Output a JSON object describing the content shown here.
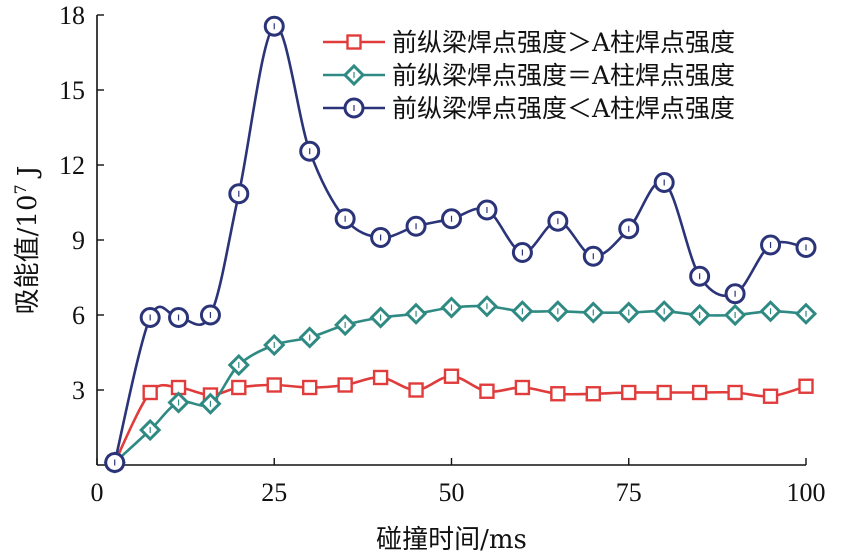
{
  "chart_data": {
    "type": "line",
    "xlabel": "碰撞时间/ms",
    "ylabel_main": "吸能值/10",
    "ylabel_exp": "7",
    "ylabel_unit": " J",
    "xlim": [
      0,
      100
    ],
    "ylim": [
      0,
      18
    ],
    "xticks": [
      0,
      25,
      50,
      75,
      100
    ],
    "xtick_labels": [
      "0",
      "25",
      "50",
      "75",
      "100"
    ],
    "yticks": [
      3,
      6,
      9,
      12,
      15,
      18
    ],
    "ytick_labels": [
      "3",
      "6",
      "9",
      "12",
      "15",
      "18"
    ],
    "grid": false,
    "legend_position": "top-right",
    "series": [
      {
        "name": "前纵梁焊点强度＞A柱焊点强度",
        "color": "#e03c3c",
        "marker": "square",
        "x": [
          2.5,
          7.5,
          11.5,
          16,
          20,
          25,
          30,
          35,
          40,
          45,
          50,
          55,
          60,
          65,
          70,
          75,
          80,
          85,
          90,
          95,
          100
        ],
        "y": [
          0.1,
          2.9,
          3.1,
          2.8,
          3.1,
          3.2,
          3.1,
          3.2,
          3.5,
          3.0,
          3.55,
          2.95,
          3.1,
          2.85,
          2.85,
          2.9,
          2.9,
          2.9,
          2.9,
          2.75,
          3.15
        ]
      },
      {
        "name": "前纵梁焊点强度＝A柱焊点强度",
        "color": "#2e8a82",
        "marker": "diamond",
        "x": [
          2.5,
          7.5,
          11.5,
          16,
          20,
          25,
          30,
          35,
          40,
          45,
          50,
          55,
          60,
          65,
          70,
          75,
          80,
          85,
          90,
          95,
          100
        ],
        "y": [
          0.1,
          1.4,
          2.5,
          2.45,
          4.0,
          4.8,
          5.1,
          5.6,
          5.9,
          6.05,
          6.3,
          6.35,
          6.15,
          6.15,
          6.1,
          6.1,
          6.15,
          6.0,
          6.0,
          6.15,
          6.05
        ]
      },
      {
        "name": "前纵梁焊点强度＜A柱焊点强度",
        "color": "#2b3478",
        "marker": "circle",
        "x": [
          2.5,
          7.5,
          11.5,
          16,
          20,
          25,
          30,
          35,
          40,
          45,
          50,
          55,
          60,
          65,
          70,
          75,
          80,
          85,
          90,
          95,
          100
        ],
        "y": [
          0.1,
          5.9,
          5.9,
          6.0,
          10.85,
          17.55,
          12.55,
          9.85,
          9.1,
          9.55,
          9.85,
          10.2,
          8.5,
          9.75,
          8.35,
          9.45,
          11.3,
          7.55,
          6.85,
          8.8,
          8.7
        ]
      }
    ]
  }
}
